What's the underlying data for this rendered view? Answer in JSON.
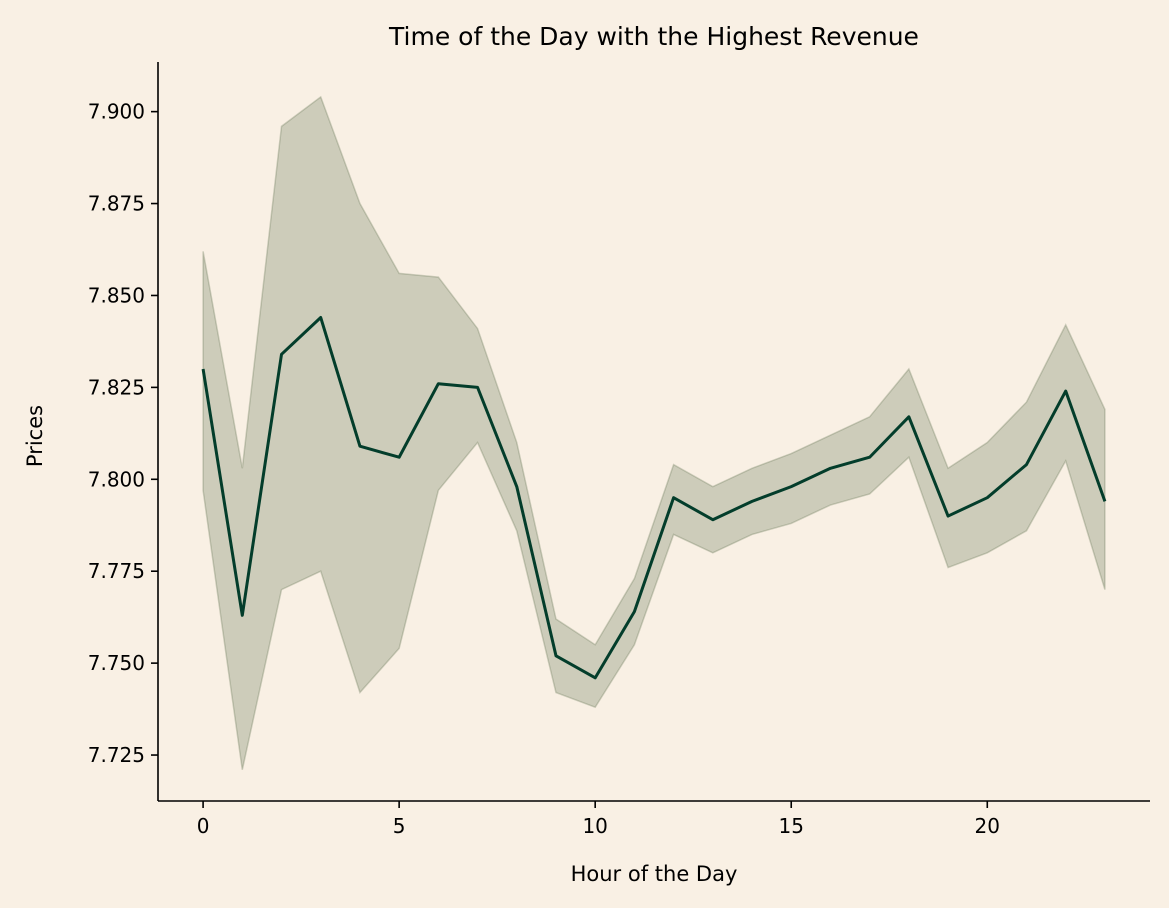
{
  "page": {
    "background_color": "#f9f0e4"
  },
  "chart_data": {
    "type": "line",
    "title": "Time of the Day with the Highest Revenue",
    "xlabel": "Hour of the Day",
    "ylabel": "Prices",
    "xlim": [
      -1.15,
      24.15
    ],
    "ylim": [
      7.7125,
      7.9135
    ],
    "x_ticks": [
      0,
      5,
      10,
      15,
      20
    ],
    "x_tick_labels": [
      "0",
      "5",
      "10",
      "15",
      "20"
    ],
    "y_ticks": [
      7.725,
      7.75,
      7.775,
      7.8,
      7.825,
      7.85,
      7.875,
      7.9
    ],
    "y_tick_labels": [
      "7.725",
      "7.750",
      "7.775",
      "7.800",
      "7.825",
      "7.850",
      "7.875",
      "7.900"
    ],
    "grid": false,
    "spines": "left-bottom",
    "line_color": "#033d2b",
    "band_color": "#4a5e3a",
    "series": [
      {
        "x": [
          0,
          1,
          2,
          3,
          4,
          5,
          6,
          7,
          8,
          9,
          10,
          11,
          12,
          13,
          14,
          15,
          16,
          17,
          18,
          19,
          20,
          21,
          22,
          23
        ],
        "values": [
          7.83,
          7.763,
          7.834,
          7.844,
          7.809,
          7.806,
          7.826,
          7.825,
          7.798,
          7.752,
          7.746,
          7.764,
          7.795,
          7.789,
          7.794,
          7.798,
          7.803,
          7.806,
          7.817,
          7.79,
          7.795,
          7.804,
          7.824,
          7.794
        ],
        "ci_lower": [
          7.797,
          7.721,
          7.77,
          7.775,
          7.742,
          7.754,
          7.797,
          7.81,
          7.786,
          7.742,
          7.738,
          7.755,
          7.785,
          7.78,
          7.785,
          7.788,
          7.793,
          7.796,
          7.806,
          7.776,
          7.78,
          7.786,
          7.805,
          7.77
        ],
        "ci_upper": [
          7.862,
          7.803,
          7.896,
          7.904,
          7.875,
          7.856,
          7.855,
          7.841,
          7.81,
          7.762,
          7.755,
          7.773,
          7.804,
          7.798,
          7.803,
          7.807,
          7.812,
          7.817,
          7.83,
          7.803,
          7.81,
          7.821,
          7.842,
          7.819
        ]
      }
    ]
  }
}
